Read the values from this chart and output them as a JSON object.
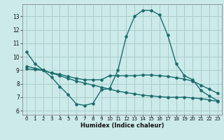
{
  "xlabel": "Humidex (Indice chaleur)",
  "bg_color": "#cceaea",
  "grid_color": "#aacccc",
  "line_color": "#1a6b6b",
  "x_ticks": [
    0,
    1,
    2,
    3,
    4,
    5,
    6,
    7,
    8,
    9,
    10,
    11,
    12,
    13,
    14,
    15,
    16,
    17,
    18,
    19,
    20,
    21,
    22,
    23
  ],
  "y_ticks": [
    6,
    7,
    8,
    9,
    10,
    11,
    12,
    13
  ],
  "ylim": [
    5.7,
    13.9
  ],
  "xlim": [
    -0.5,
    23.5
  ],
  "line1_x": [
    0,
    1,
    2,
    3,
    4,
    5,
    6,
    7,
    8,
    9,
    10,
    11,
    12,
    13,
    14,
    15,
    16,
    17,
    18,
    19,
    20,
    21,
    22,
    23
  ],
  "line1_y": [
    10.35,
    9.5,
    9.0,
    8.5,
    7.8,
    7.2,
    6.5,
    6.4,
    6.55,
    7.55,
    7.65,
    9.0,
    11.5,
    13.0,
    13.45,
    13.45,
    13.1,
    11.6,
    9.5,
    8.6,
    8.3,
    7.5,
    7.1,
    6.75
  ],
  "line2_x": [
    0,
    1,
    2,
    3,
    4,
    5,
    6,
    7,
    8,
    9,
    10,
    11,
    12,
    13,
    14,
    15,
    16,
    17,
    18,
    19,
    20,
    21,
    22,
    23
  ],
  "line2_y": [
    9.1,
    9.05,
    9.0,
    8.8,
    8.7,
    8.55,
    8.4,
    8.3,
    8.3,
    8.3,
    8.6,
    8.6,
    8.6,
    8.6,
    8.65,
    8.65,
    8.6,
    8.55,
    8.45,
    8.35,
    8.2,
    7.9,
    7.6,
    7.3
  ],
  "line3_x": [
    0,
    1,
    2,
    3,
    4,
    5,
    6,
    7,
    8,
    9,
    10,
    11,
    12,
    13,
    14,
    15,
    16,
    17,
    18,
    19,
    20,
    21,
    22,
    23
  ],
  "line3_y": [
    9.3,
    9.15,
    9.0,
    8.8,
    8.6,
    8.4,
    8.2,
    8.05,
    7.9,
    7.75,
    7.6,
    7.45,
    7.35,
    7.25,
    7.15,
    7.1,
    7.05,
    7.0,
    7.0,
    7.0,
    6.95,
    6.9,
    6.8,
    6.7
  ]
}
